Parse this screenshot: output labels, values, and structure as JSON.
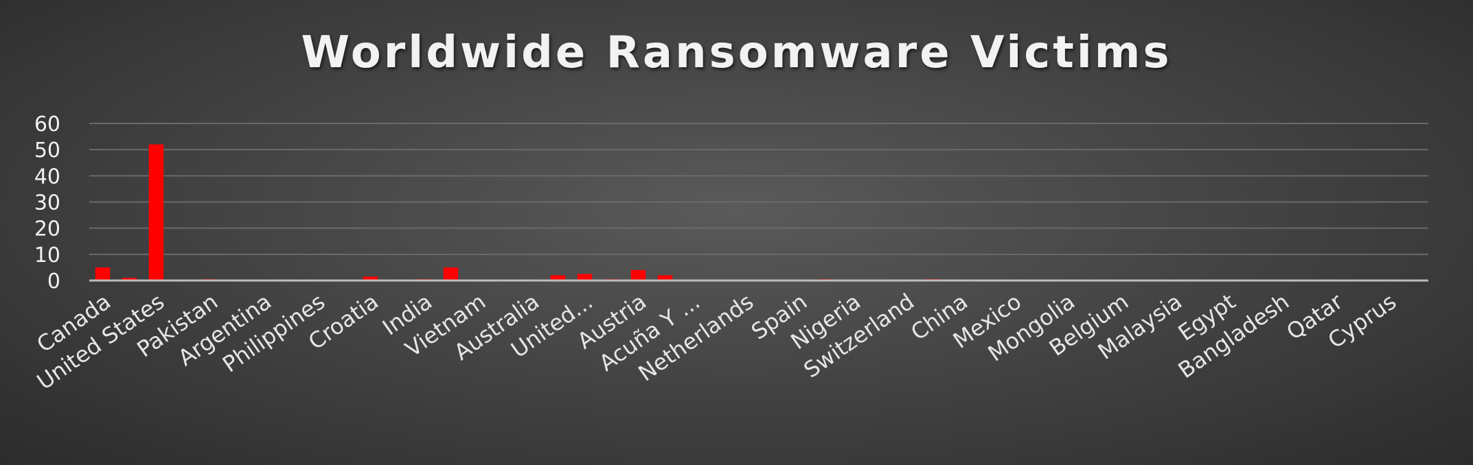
{
  "chart_data": {
    "type": "bar",
    "title": "Worldwide Ransomware Victims",
    "xlabel": "",
    "ylabel": "",
    "ylim": [
      0,
      60
    ],
    "yticks": [
      0,
      10,
      20,
      30,
      40,
      50,
      60
    ],
    "grid": true,
    "bar_color": "#ff0000",
    "categories": [
      "Canada",
      "",
      "United States",
      "",
      "Pakistan",
      "",
      "Argentina",
      "",
      "Philippines",
      "",
      "Croatia",
      "",
      "India",
      "",
      "Vietnam",
      "",
      "Australia",
      "",
      "United...",
      "",
      "Austria",
      "",
      "Acuña Y ...",
      "",
      "Netherlands",
      "",
      "Spain",
      "",
      "Nigeria",
      "",
      "Switzerland",
      "",
      "China",
      "",
      "Mexico",
      "",
      "Mongolia",
      "",
      "Belgium",
      "",
      "Malaysia",
      "",
      "Egypt",
      "",
      "Bangladesh",
      "",
      "Qatar",
      "",
      "Cyprus",
      ""
    ],
    "values": [
      5,
      1,
      52,
      0,
      0.5,
      0.3,
      0.3,
      0.2,
      0.2,
      0.2,
      1.5,
      0,
      0.5,
      5,
      0.2,
      0.2,
      0.2,
      2,
      2.5,
      0.5,
      4,
      2,
      0.2,
      0.2,
      0.2,
      0.2,
      0.2,
      0.5,
      0.2,
      0.2,
      0.2,
      0.5,
      0.2,
      0.2,
      0.2,
      0.2,
      0.2,
      0.2,
      0.2,
      0.2,
      0.2,
      0.2,
      0.2,
      0.2,
      0.2,
      0.2,
      0.2,
      0.2,
      0.2,
      0.2
    ]
  }
}
